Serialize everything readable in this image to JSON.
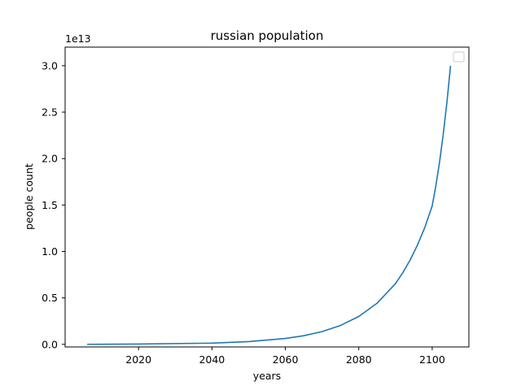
{
  "chart_data": {
    "type": "line",
    "title": "russian population",
    "xlabel": "years",
    "ylabel": "people count",
    "y_offset_label": "1e13",
    "y_scale_multiplier": 10000000000000,
    "xlim": [
      2000,
      2110
    ],
    "ylim": [
      -280000000000.0,
      32000000000000.0
    ],
    "x_ticks": [
      2020,
      2040,
      2060,
      2080,
      2100
    ],
    "y_ticks": [
      0,
      5000000000000.0,
      10000000000000.0,
      15000000000000.0,
      20000000000000.0,
      25000000000000.0,
      30000000000000.0
    ],
    "y_tick_labels": [
      "0.0",
      "0.5",
      "1.0",
      "1.5",
      "2.0",
      "2.5",
      "3.0"
    ],
    "grid": false,
    "legend_placement": "top-right",
    "series": [
      {
        "color": "#1f77b4",
        "x": [
          2006,
          2020,
          2040,
          2050,
          2060,
          2065,
          2070,
          2075,
          2080,
          2085,
          2090,
          2092,
          2094,
          2096,
          2098,
          2100,
          2101,
          2102,
          2103,
          2104,
          2105
        ],
        "y": [
          4700000000.0,
          28000000000.0,
          130000000000.0,
          290000000000.0,
          630000000000.0,
          930000000000.0,
          1370000000000.0,
          2030000000000.0,
          3000000000000.0,
          4430000000000.0,
          6540000000000.0,
          7710000000000.0,
          9090000000000.0,
          10700000000000.0,
          12600000000000.0,
          14900000000000.0,
          17100000000000.0,
          19600000000000.0,
          22600000000000.0,
          26000000000000.0,
          30000000000000.0
        ]
      }
    ]
  }
}
